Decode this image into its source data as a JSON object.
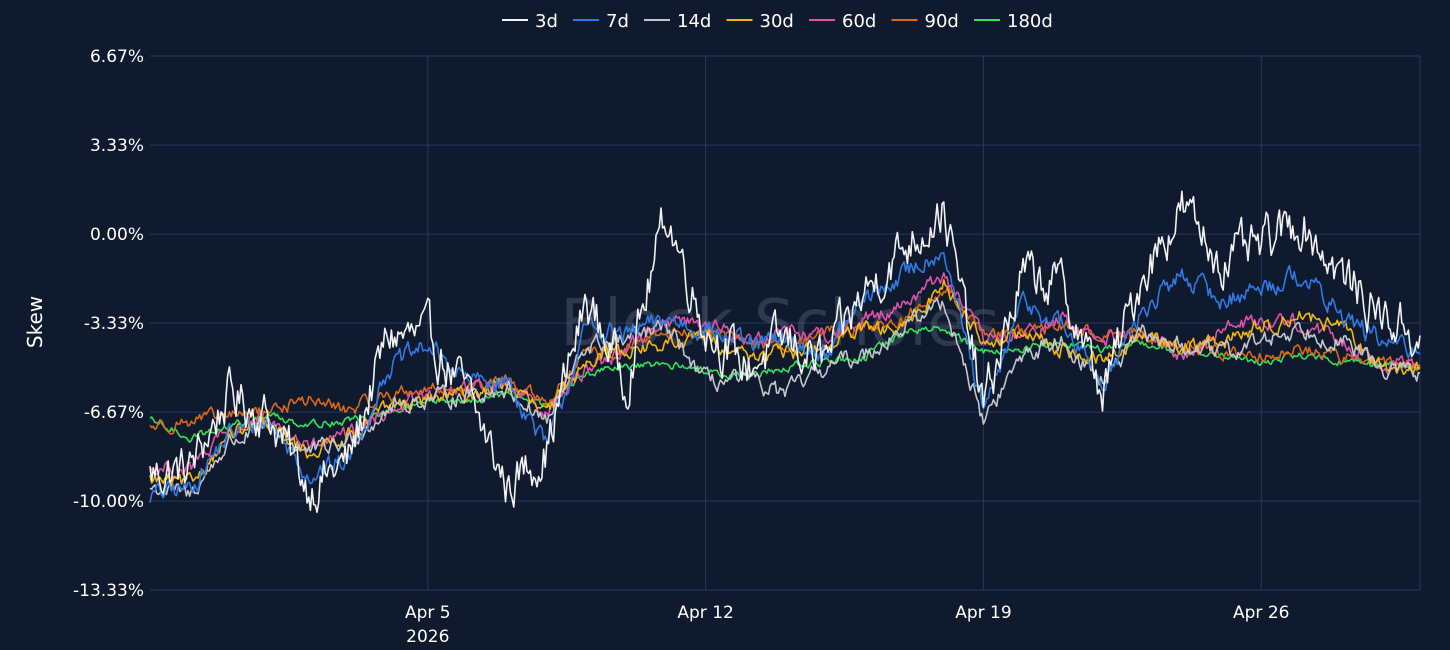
{
  "watermark": "Block Scholes",
  "chart_data": {
    "type": "line",
    "ylabel": "Skew",
    "ylim": [
      -13.33,
      6.67
    ],
    "y_ticks": [
      {
        "value": 6.67,
        "label": "6.67%"
      },
      {
        "value": 3.33,
        "label": "3.33%"
      },
      {
        "value": 0.0,
        "label": "0.00%"
      },
      {
        "value": -3.33,
        "label": "-3.33%"
      },
      {
        "value": -6.67,
        "label": "-6.67%"
      },
      {
        "value": -10.0,
        "label": "-10.00%"
      },
      {
        "value": -13.33,
        "label": "-13.33%"
      }
    ],
    "x_range": [
      "2026-03-29",
      "2026-04-30"
    ],
    "x_ticks": [
      {
        "date": "2026-04-05",
        "label": "Apr 5",
        "sublabel": "2026"
      },
      {
        "date": "2026-04-12",
        "label": "Apr 12",
        "sublabel": ""
      },
      {
        "date": "2026-04-19",
        "label": "Apr 19",
        "sublabel": ""
      },
      {
        "date": "2026-04-26",
        "label": "Apr 26",
        "sublabel": ""
      }
    ],
    "grid": true,
    "legend_position": "top-center",
    "series": [
      {
        "name": "3d",
        "color": "#f2f2f2",
        "noise": 0.9,
        "points": [
          [
            "2026-03-29",
            -9.0
          ],
          [
            "2026-03-30",
            -8.8
          ],
          [
            "2026-03-31",
            -6.0
          ],
          [
            "2026-04-01",
            -6.8
          ],
          [
            "2026-04-02",
            -9.5
          ],
          [
            "2026-04-03",
            -8.5
          ],
          [
            "2026-04-04",
            -3.8
          ],
          [
            "2026-04-05",
            -3.9
          ],
          [
            "2026-04-06",
            -6.0
          ],
          [
            "2026-04-07",
            -9.5
          ],
          [
            "2026-04-08",
            -8.0
          ],
          [
            "2026-04-09",
            -2.5
          ],
          [
            "2026-04-10",
            -5.5
          ],
          [
            "2026-04-11",
            0.8
          ],
          [
            "2026-04-12",
            -3.5
          ],
          [
            "2026-04-13",
            -5.0
          ],
          [
            "2026-04-14",
            -4.0
          ],
          [
            "2026-04-15",
            -4.8
          ],
          [
            "2026-04-16",
            -2.2
          ],
          [
            "2026-04-17",
            -0.5
          ],
          [
            "2026-04-18",
            1.0
          ],
          [
            "2026-04-19",
            -6.5
          ],
          [
            "2026-04-20",
            -1.5
          ],
          [
            "2026-04-21",
            -2.0
          ],
          [
            "2026-04-22",
            -6.0
          ],
          [
            "2026-04-23",
            -1.5
          ],
          [
            "2026-04-24",
            1.0
          ],
          [
            "2026-04-25",
            -1.0
          ],
          [
            "2026-04-26",
            -0.5
          ],
          [
            "2026-04-27",
            0.5
          ],
          [
            "2026-04-28",
            -1.5
          ],
          [
            "2026-04-29",
            -3.0
          ],
          [
            "2026-04-30",
            -3.8
          ]
        ]
      },
      {
        "name": "7d",
        "color": "#2f7ae5",
        "noise": 0.4,
        "points": [
          [
            "2026-03-29",
            -9.8
          ],
          [
            "2026-03-30",
            -9.5
          ],
          [
            "2026-03-31",
            -7.5
          ],
          [
            "2026-04-01",
            -7.0
          ],
          [
            "2026-04-02",
            -9.0
          ],
          [
            "2026-04-03",
            -8.5
          ],
          [
            "2026-04-04",
            -5.0
          ],
          [
            "2026-04-05",
            -4.2
          ],
          [
            "2026-04-06",
            -5.5
          ],
          [
            "2026-04-07",
            -5.5
          ],
          [
            "2026-04-08",
            -8.0
          ],
          [
            "2026-04-09",
            -3.5
          ],
          [
            "2026-04-10",
            -3.8
          ],
          [
            "2026-04-11",
            -3.2
          ],
          [
            "2026-04-12",
            -3.5
          ],
          [
            "2026-04-13",
            -4.2
          ],
          [
            "2026-04-14",
            -4.0
          ],
          [
            "2026-04-15",
            -4.5
          ],
          [
            "2026-04-16",
            -2.5
          ],
          [
            "2026-04-17",
            -1.5
          ],
          [
            "2026-04-18",
            -0.5
          ],
          [
            "2026-04-19",
            -6.8
          ],
          [
            "2026-04-20",
            -2.5
          ],
          [
            "2026-04-21",
            -3.5
          ],
          [
            "2026-04-22",
            -5.5
          ],
          [
            "2026-04-23",
            -3.0
          ],
          [
            "2026-04-24",
            -1.5
          ],
          [
            "2026-04-25",
            -2.5
          ],
          [
            "2026-04-26",
            -2.0
          ],
          [
            "2026-04-27",
            -1.5
          ],
          [
            "2026-04-28",
            -3.0
          ],
          [
            "2026-04-29",
            -4.0
          ],
          [
            "2026-04-30",
            -4.5
          ]
        ]
      },
      {
        "name": "14d",
        "color": "#c4c6cc",
        "noise": 0.35,
        "points": [
          [
            "2026-03-29",
            -9.5
          ],
          [
            "2026-03-30",
            -9.8
          ],
          [
            "2026-03-31",
            -7.8
          ],
          [
            "2026-04-01",
            -7.2
          ],
          [
            "2026-04-02",
            -8.2
          ],
          [
            "2026-04-03",
            -7.8
          ],
          [
            "2026-04-04",
            -6.5
          ],
          [
            "2026-04-05",
            -6.2
          ],
          [
            "2026-04-06",
            -6.0
          ],
          [
            "2026-04-07",
            -5.8
          ],
          [
            "2026-04-08",
            -7.0
          ],
          [
            "2026-04-09",
            -4.2
          ],
          [
            "2026-04-10",
            -4.0
          ],
          [
            "2026-04-11",
            -3.5
          ],
          [
            "2026-04-12",
            -5.5
          ],
          [
            "2026-04-13",
            -5.5
          ],
          [
            "2026-04-14",
            -6.0
          ],
          [
            "2026-04-15",
            -5.0
          ],
          [
            "2026-04-16",
            -4.5
          ],
          [
            "2026-04-17",
            -3.5
          ],
          [
            "2026-04-18",
            -2.5
          ],
          [
            "2026-04-19",
            -7.0
          ],
          [
            "2026-04-20",
            -4.5
          ],
          [
            "2026-04-21",
            -4.0
          ],
          [
            "2026-04-22",
            -5.5
          ],
          [
            "2026-04-23",
            -3.8
          ],
          [
            "2026-04-24",
            -4.2
          ],
          [
            "2026-04-25",
            -4.5
          ],
          [
            "2026-04-26",
            -4.0
          ],
          [
            "2026-04-27",
            -3.5
          ],
          [
            "2026-04-28",
            -4.0
          ],
          [
            "2026-04-29",
            -5.0
          ],
          [
            "2026-04-30",
            -5.2
          ]
        ]
      },
      {
        "name": "30d",
        "color": "#f2b70f",
        "noise": 0.3,
        "points": [
          [
            "2026-03-29",
            -9.2
          ],
          [
            "2026-03-30",
            -9.4
          ],
          [
            "2026-03-31",
            -7.5
          ],
          [
            "2026-04-01",
            -7.2
          ],
          [
            "2026-04-02",
            -8.2
          ],
          [
            "2026-04-03",
            -7.5
          ],
          [
            "2026-04-04",
            -6.5
          ],
          [
            "2026-04-05",
            -6.2
          ],
          [
            "2026-04-06",
            -6.0
          ],
          [
            "2026-04-07",
            -5.6
          ],
          [
            "2026-04-08",
            -6.8
          ],
          [
            "2026-04-09",
            -4.6
          ],
          [
            "2026-04-10",
            -4.3
          ],
          [
            "2026-04-11",
            -4.2
          ],
          [
            "2026-04-12",
            -3.8
          ],
          [
            "2026-04-13",
            -4.5
          ],
          [
            "2026-04-14",
            -4.5
          ],
          [
            "2026-04-15",
            -4.2
          ],
          [
            "2026-04-16",
            -3.6
          ],
          [
            "2026-04-17",
            -3.6
          ],
          [
            "2026-04-18",
            -1.8
          ],
          [
            "2026-04-19",
            -4.0
          ],
          [
            "2026-04-20",
            -3.8
          ],
          [
            "2026-04-21",
            -4.3
          ],
          [
            "2026-04-22",
            -4.8
          ],
          [
            "2026-04-23",
            -3.8
          ],
          [
            "2026-04-24",
            -4.2
          ],
          [
            "2026-04-25",
            -4.0
          ],
          [
            "2026-04-26",
            -3.5
          ],
          [
            "2026-04-27",
            -3.0
          ],
          [
            "2026-04-28",
            -3.5
          ],
          [
            "2026-04-29",
            -5.0
          ],
          [
            "2026-04-30",
            -5.0
          ]
        ]
      },
      {
        "name": "60d",
        "color": "#e052a8",
        "noise": 0.3,
        "points": [
          [
            "2026-03-29",
            -8.8
          ],
          [
            "2026-03-30",
            -8.8
          ],
          [
            "2026-03-31",
            -7.4
          ],
          [
            "2026-04-01",
            -7.0
          ],
          [
            "2026-04-02",
            -8.0
          ],
          [
            "2026-04-03",
            -7.6
          ],
          [
            "2026-04-04",
            -6.6
          ],
          [
            "2026-04-05",
            -6.0
          ],
          [
            "2026-04-06",
            -5.8
          ],
          [
            "2026-04-07",
            -5.5
          ],
          [
            "2026-04-08",
            -6.6
          ],
          [
            "2026-04-09",
            -5.0
          ],
          [
            "2026-04-10",
            -4.3
          ],
          [
            "2026-04-11",
            -3.2
          ],
          [
            "2026-04-12",
            -3.3
          ],
          [
            "2026-04-13",
            -4.0
          ],
          [
            "2026-04-14",
            -3.6
          ],
          [
            "2026-04-15",
            -3.8
          ],
          [
            "2026-04-16",
            -3.2
          ],
          [
            "2026-04-17",
            -2.6
          ],
          [
            "2026-04-18",
            -1.5
          ],
          [
            "2026-04-19",
            -4.0
          ],
          [
            "2026-04-20",
            -3.8
          ],
          [
            "2026-04-21",
            -3.2
          ],
          [
            "2026-04-22",
            -4.0
          ],
          [
            "2026-04-23",
            -3.8
          ],
          [
            "2026-04-24",
            -4.5
          ],
          [
            "2026-04-25",
            -3.6
          ],
          [
            "2026-04-26",
            -3.2
          ],
          [
            "2026-04-27",
            -3.3
          ],
          [
            "2026-04-28",
            -4.0
          ],
          [
            "2026-04-29",
            -4.8
          ],
          [
            "2026-04-30",
            -4.9
          ]
        ]
      },
      {
        "name": "90d",
        "color": "#d96a17",
        "noise": 0.25,
        "points": [
          [
            "2026-03-29",
            -7.2
          ],
          [
            "2026-03-30",
            -7.0
          ],
          [
            "2026-03-31",
            -6.8
          ],
          [
            "2026-04-01",
            -6.6
          ],
          [
            "2026-04-02",
            -6.2
          ],
          [
            "2026-04-03",
            -6.6
          ],
          [
            "2026-04-04",
            -6.0
          ],
          [
            "2026-04-05",
            -5.8
          ],
          [
            "2026-04-06",
            -5.8
          ],
          [
            "2026-04-07",
            -5.5
          ],
          [
            "2026-04-08",
            -6.3
          ],
          [
            "2026-04-09",
            -4.5
          ],
          [
            "2026-04-10",
            -4.4
          ],
          [
            "2026-04-11",
            -3.6
          ],
          [
            "2026-04-12",
            -3.8
          ],
          [
            "2026-04-13",
            -4.0
          ],
          [
            "2026-04-14",
            -4.2
          ],
          [
            "2026-04-15",
            -3.7
          ],
          [
            "2026-04-16",
            -3.5
          ],
          [
            "2026-04-17",
            -3.2
          ],
          [
            "2026-04-18",
            -2.0
          ],
          [
            "2026-04-19",
            -3.6
          ],
          [
            "2026-04-20",
            -3.8
          ],
          [
            "2026-04-21",
            -3.4
          ],
          [
            "2026-04-22",
            -3.8
          ],
          [
            "2026-04-23",
            -3.7
          ],
          [
            "2026-04-24",
            -4.2
          ],
          [
            "2026-04-25",
            -4.4
          ],
          [
            "2026-04-26",
            -4.5
          ],
          [
            "2026-04-27",
            -4.3
          ],
          [
            "2026-04-28",
            -4.6
          ],
          [
            "2026-04-29",
            -4.8
          ],
          [
            "2026-04-30",
            -5.0
          ]
        ]
      },
      {
        "name": "180d",
        "color": "#33e05a",
        "noise": 0.15,
        "points": [
          [
            "2026-03-29",
            -7.0
          ],
          [
            "2026-03-30",
            -7.6
          ],
          [
            "2026-03-31",
            -7.2
          ],
          [
            "2026-04-01",
            -6.8
          ],
          [
            "2026-04-02",
            -7.1
          ],
          [
            "2026-04-03",
            -7.0
          ],
          [
            "2026-04-04",
            -6.7
          ],
          [
            "2026-04-05",
            -6.3
          ],
          [
            "2026-04-06",
            -6.2
          ],
          [
            "2026-04-07",
            -6.0
          ],
          [
            "2026-04-08",
            -6.4
          ],
          [
            "2026-04-09",
            -5.2
          ],
          [
            "2026-04-10",
            -5.0
          ],
          [
            "2026-04-11",
            -4.9
          ],
          [
            "2026-04-12",
            -5.1
          ],
          [
            "2026-04-13",
            -5.3
          ],
          [
            "2026-04-14",
            -5.0
          ],
          [
            "2026-04-15",
            -4.8
          ],
          [
            "2026-04-16",
            -4.6
          ],
          [
            "2026-04-17",
            -3.7
          ],
          [
            "2026-04-18",
            -3.5
          ],
          [
            "2026-04-19",
            -4.4
          ],
          [
            "2026-04-20",
            -4.3
          ],
          [
            "2026-04-21",
            -4.0
          ],
          [
            "2026-04-22",
            -4.3
          ],
          [
            "2026-04-23",
            -4.1
          ],
          [
            "2026-04-24",
            -4.4
          ],
          [
            "2026-04-25",
            -4.6
          ],
          [
            "2026-04-26",
            -4.8
          ],
          [
            "2026-04-27",
            -4.5
          ],
          [
            "2026-04-28",
            -4.8
          ],
          [
            "2026-04-29",
            -4.9
          ],
          [
            "2026-04-30",
            -5.0
          ]
        ]
      }
    ]
  }
}
